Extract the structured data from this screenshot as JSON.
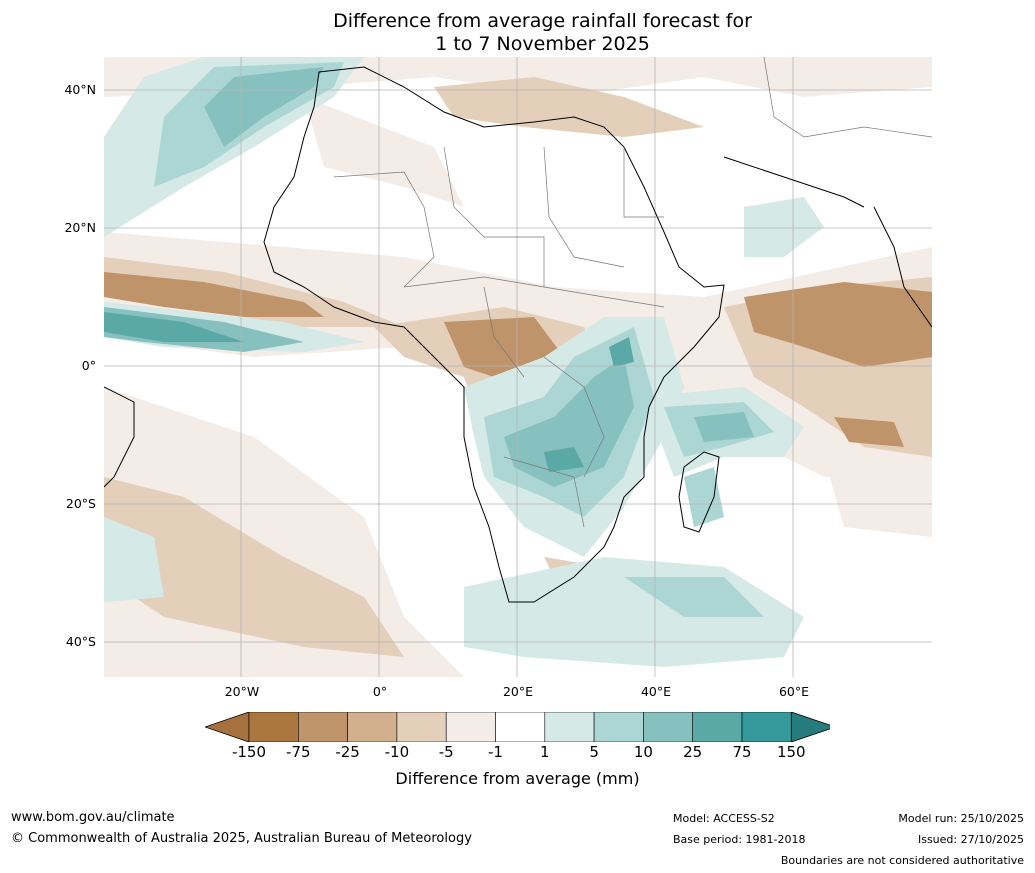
{
  "title": {
    "line1": "Difference from average rainfall forecast for",
    "line2": "1 to 7 November 2025"
  },
  "map": {
    "region": "Africa and surrounding oceans",
    "lat_labels": [
      "40°N",
      "20°N",
      "0°",
      "20°S",
      "40°S"
    ],
    "lon_labels": [
      "20°W",
      "0°",
      "20°E",
      "40°E",
      "60°E"
    ]
  },
  "colorbar": {
    "title": "Difference from average (mm)",
    "ticks": [
      "-150",
      "-75",
      "-25",
      "-10",
      "-5",
      "-1",
      "1",
      "5",
      "10",
      "25",
      "75",
      "150"
    ],
    "colors": [
      "#a5723f",
      "#ac773f",
      "#c0946a",
      "#d2b08e",
      "#e4cfbb",
      "#f4ece6",
      "#ffffff",
      "#d5e9e7",
      "#acd6d4",
      "#86c1bf",
      "#5aa9a7",
      "#33999a",
      "#267c7d"
    ]
  },
  "footer": {
    "website": "www.bom.gov.au/climate",
    "copyright": "© Commonwealth of Australia 2025, Australian Bureau of Meteorology",
    "model": "Model: ACCESS-S2",
    "base_period": "Base period: 1981-2018",
    "model_run": "Model run: 25/10/2025",
    "issued": "Issued: 27/10/2025",
    "disclaimer": "Boundaries are not considered authoritative"
  }
}
